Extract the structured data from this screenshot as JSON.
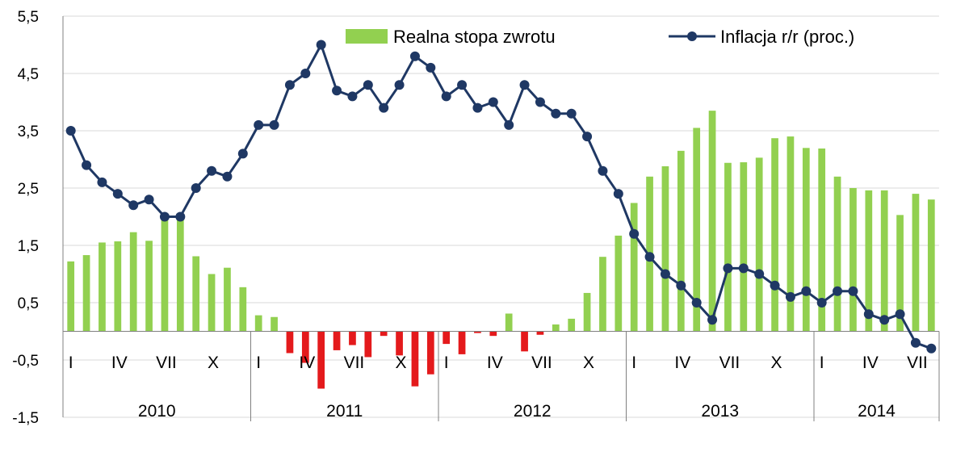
{
  "chart_data": {
    "type": "bar+line",
    "title": "",
    "xlabel": "",
    "ylabel": "",
    "ylim": [
      -1.5,
      5.5
    ],
    "y_ticks": [
      "5,5",
      "4,5",
      "3,5",
      "2,5",
      "1,5",
      "0,5",
      "-0,5",
      "-1,5"
    ],
    "grid": "horizontal",
    "legend_position": "top",
    "colors": {
      "bar_positive": "#92d050",
      "bar_negative": "#e41a1c",
      "line": "#1f3864",
      "grid": "#d9d9d9",
      "axis": "#808080"
    },
    "years": [
      {
        "label": "2010",
        "months": 12
      },
      {
        "label": "2011",
        "months": 12
      },
      {
        "label": "2012",
        "months": 12
      },
      {
        "label": "2013",
        "months": 12
      },
      {
        "label": "2014",
        "months": 8
      }
    ],
    "month_labels": [
      "I",
      "",
      "",
      "IV",
      "",
      "",
      "VII",
      "",
      "",
      "X",
      "",
      "",
      "I",
      "",
      "",
      "IV",
      "",
      "",
      "VII",
      "",
      "",
      "X",
      "",
      "",
      "I",
      "",
      "",
      "IV",
      "",
      "",
      "VII",
      "",
      "",
      "X",
      "",
      "",
      "I",
      "",
      "",
      "IV",
      "",
      "",
      "VII",
      "",
      "",
      "X",
      "",
      "",
      "I",
      "",
      "",
      "IV",
      "",
      "",
      "VII",
      ""
    ],
    "series": [
      {
        "name": "Realna stopa zwrotu",
        "type": "bar",
        "values": [
          1.22,
          1.33,
          1.55,
          1.57,
          1.73,
          1.58,
          2.01,
          2.02,
          1.31,
          1.0,
          1.11,
          0.77,
          0.28,
          0.25,
          -0.38,
          -0.55,
          -1.0,
          -0.33,
          -0.24,
          -0.45,
          -0.08,
          -0.42,
          -0.96,
          -0.75,
          -0.22,
          -0.4,
          -0.03,
          -0.08,
          0.31,
          -0.35,
          -0.06,
          0.12,
          0.22,
          0.67,
          1.3,
          1.67,
          2.24,
          2.7,
          2.88,
          3.15,
          3.55,
          3.85,
          2.94,
          2.95,
          3.03,
          3.37,
          3.4,
          3.2,
          3.19,
          2.7,
          2.5,
          2.46,
          2.46,
          2.03,
          2.4,
          2.3
        ]
      },
      {
        "name": "Inflacja r/r (proc.)",
        "type": "line",
        "values": [
          3.5,
          2.9,
          2.6,
          2.4,
          2.2,
          2.3,
          2.0,
          2.0,
          2.5,
          2.8,
          2.7,
          3.1,
          3.6,
          3.6,
          4.3,
          4.5,
          5.0,
          4.2,
          4.1,
          4.3,
          3.9,
          4.3,
          4.8,
          4.6,
          4.1,
          4.3,
          3.9,
          4.0,
          3.6,
          4.3,
          4.0,
          3.8,
          3.8,
          3.4,
          2.8,
          2.4,
          1.7,
          1.3,
          1.0,
          0.8,
          0.5,
          0.2,
          1.1,
          1.1,
          1.0,
          0.8,
          0.6,
          0.7,
          0.5,
          0.7,
          0.7,
          0.3,
          0.2,
          0.3,
          -0.2,
          -0.3
        ]
      }
    ]
  }
}
